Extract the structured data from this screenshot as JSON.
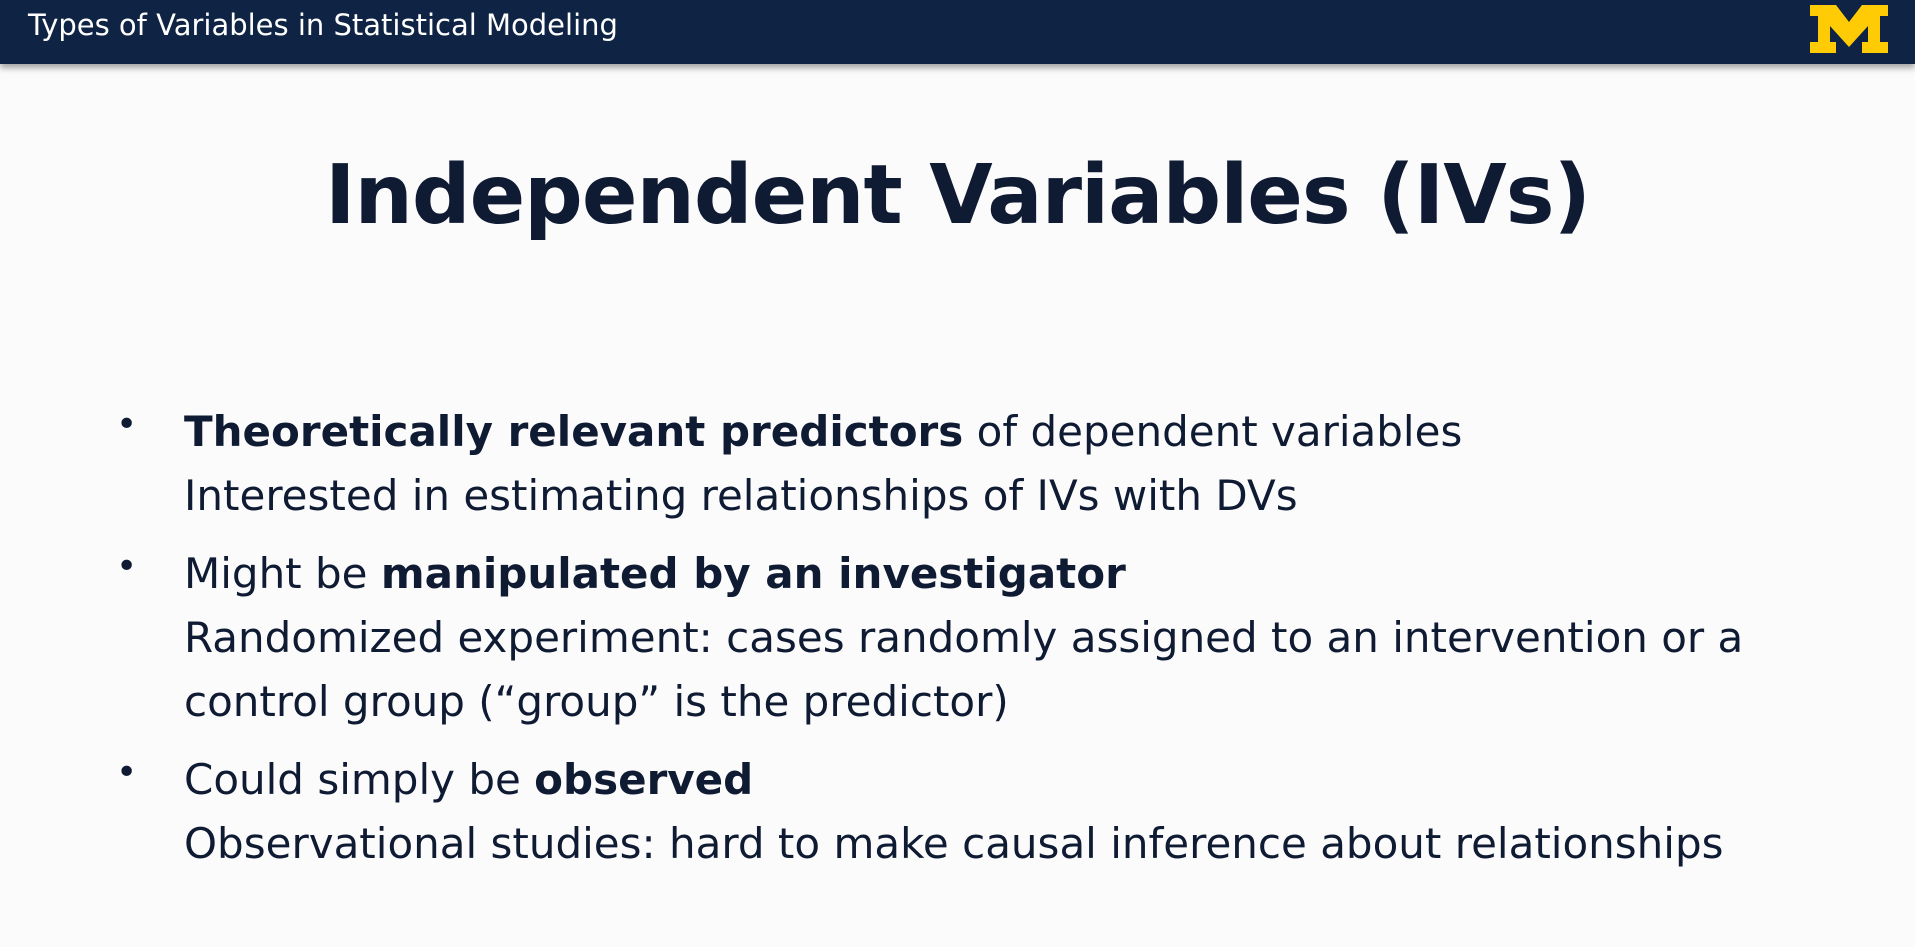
{
  "header": {
    "title": "Types of Variables in Statistical Modeling",
    "logo_letter": "M",
    "logo_color": "#ffcb05",
    "bar_color": "#0f2444"
  },
  "slide": {
    "title": "Independent Variables (IVs)",
    "bullets": [
      {
        "bold": "Theoretically relevant predictors",
        "rest": " of dependent variables",
        "sub": [
          "Interested in estimating relationships of IVs with DVs"
        ]
      },
      {
        "lead": "Might be ",
        "bold": "manipulated by an investigator",
        "sub": [
          "Randomized experiment: cases randomly assigned to an intervention or a",
          "control group (“group” is the predictor)"
        ]
      },
      {
        "lead": "Could simply be ",
        "bold": "observed",
        "sub": [
          "Observational studies: hard to make causal inference about relationships"
        ]
      }
    ],
    "bullet_glyph": "•"
  }
}
